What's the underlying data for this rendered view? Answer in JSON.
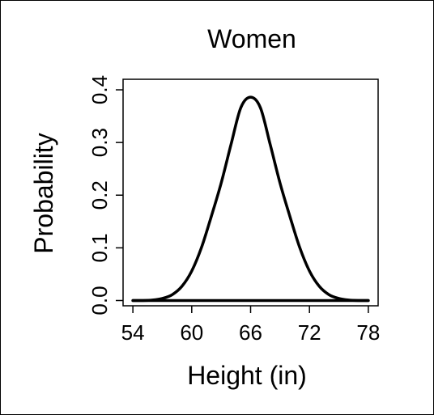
{
  "chart_data": {
    "type": "line",
    "title": "Women",
    "xlabel": "Height (in)",
    "ylabel": "Probability",
    "xlim": [
      53,
      79
    ],
    "ylim": [
      -0.01,
      0.42
    ],
    "xticks": [
      54,
      60,
      66,
      72,
      78
    ],
    "xtick_labels": [
      "54",
      "60",
      "66",
      "72",
      "78"
    ],
    "yticks": [
      0.0,
      0.1,
      0.2,
      0.3,
      0.4
    ],
    "ytick_labels": [
      "0.0",
      "0.1",
      "0.2",
      "0.3",
      "0.4"
    ],
    "grid": false,
    "line_color": "#000000",
    "series": [
      {
        "x": [
          54,
          55,
          56,
          57,
          58,
          59,
          60,
          61,
          62,
          63,
          64,
          65,
          66,
          67,
          68,
          69,
          70,
          71,
          72,
          73,
          74,
          75,
          76,
          77,
          78
        ],
        "y": [
          0.0,
          0.0,
          0.001,
          0.004,
          0.011,
          0.027,
          0.056,
          0.101,
          0.16,
          0.223,
          0.296,
          0.366,
          0.386,
          0.366,
          0.296,
          0.223,
          0.16,
          0.101,
          0.056,
          0.027,
          0.011,
          0.004,
          0.001,
          0.0,
          0.0
        ]
      },
      {
        "x": [
          54,
          78
        ],
        "y": [
          0.0,
          0.0
        ]
      }
    ]
  }
}
